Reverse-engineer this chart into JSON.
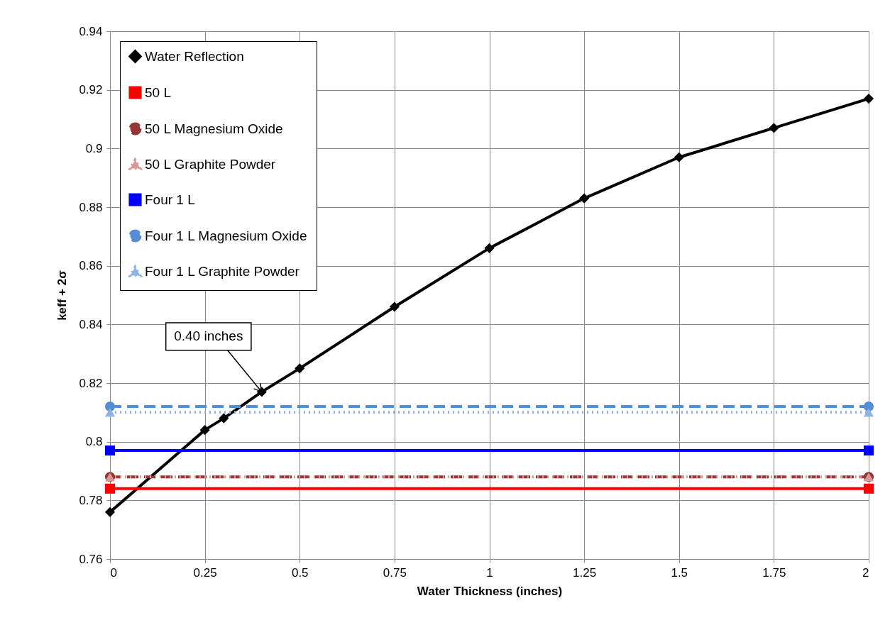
{
  "chart_data": {
    "type": "line",
    "xlabel": "Water Thickness (inches)",
    "ylabel": "keff + 2σ",
    "xlim": [
      0,
      2
    ],
    "xticks": [
      0,
      0.25,
      0.5,
      0.75,
      1,
      1.25,
      1.5,
      1.75,
      2
    ],
    "ylim": [
      0.76,
      0.94
    ],
    "yticks": [
      0.76,
      0.78,
      0.8,
      0.82,
      0.84,
      0.86,
      0.88,
      0.9,
      0.92,
      0.94
    ],
    "grid": true,
    "legend": "top left",
    "annotations": [
      {
        "text": "0.40 inches",
        "x": 0.4,
        "y": 0.817
      }
    ],
    "series": [
      {
        "name": "Water Reflection",
        "color": "#000000",
        "marker": "diamond",
        "line_style": "solid",
        "x": [
          0,
          0.25,
          0.3,
          0.4,
          0.5,
          0.75,
          1,
          1.25,
          1.5,
          1.75,
          2
        ],
        "values": [
          0.776,
          0.804,
          0.808,
          0.817,
          0.825,
          0.846,
          0.866,
          0.883,
          0.897,
          0.907,
          0.917
        ]
      },
      {
        "name": "50 L",
        "color": "#ff0000",
        "marker": "square",
        "line_style": "solid",
        "x": [
          0,
          2
        ],
        "values": [
          0.784,
          0.784
        ]
      },
      {
        "name": "50 L Magnesium Oxide",
        "color": "#953735",
        "marker": "circle",
        "line_style": "dashed",
        "x": [
          0,
          2
        ],
        "values": [
          0.788,
          0.788
        ]
      },
      {
        "name": "50 L Graphite Powder",
        "color": "#d99694",
        "marker": "triangle",
        "line_style": "dotted",
        "x": [
          0,
          2
        ],
        "values": [
          0.788,
          0.788
        ]
      },
      {
        "name": "Four 1 L",
        "color": "#0000ff",
        "marker": "square",
        "line_style": "solid",
        "x": [
          0,
          2
        ],
        "values": [
          0.797,
          0.797
        ]
      },
      {
        "name": "Four 1 L Magnesium Oxide",
        "color": "#558ed5",
        "marker": "circle",
        "line_style": "dashed",
        "x": [
          0,
          2
        ],
        "values": [
          0.812,
          0.812
        ]
      },
      {
        "name": "Four 1 L Graphite Powder",
        "color": "#8eb4e3",
        "marker": "triangle",
        "line_style": "dotted",
        "x": [
          0,
          2
        ],
        "values": [
          0.81,
          0.81
        ]
      }
    ]
  }
}
